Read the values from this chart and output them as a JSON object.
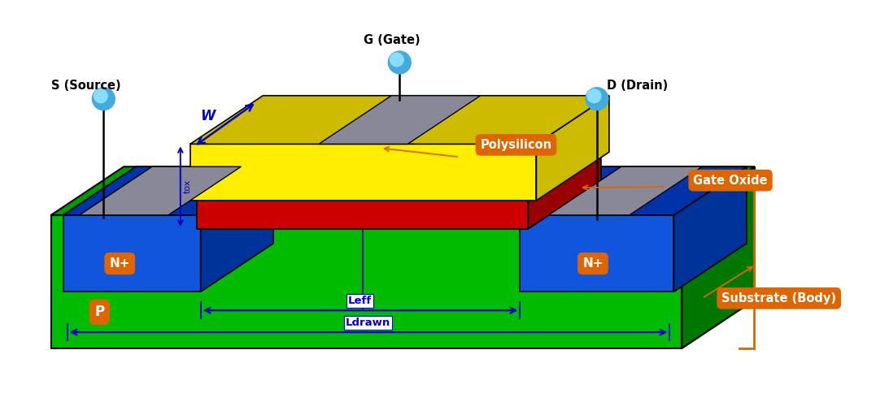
{
  "bg_color": "#ffffff",
  "colors": {
    "green": "#00bb00",
    "green_dark": "#009900",
    "green_side": "#007700",
    "blue": "#1155dd",
    "blue_dark": "#0033aa",
    "blue_side": "#003399",
    "yellow": "#ffee00",
    "yellow_side": "#ccbb00",
    "red": "#cc0000",
    "red_side": "#990000",
    "gray_contact": "#888899",
    "gray_contact_dark": "#666677",
    "orange": "#dd6600",
    "black": "#000000",
    "white": "#ffffff",
    "ball_outer": "#44aadd",
    "ball_inner": "#88ddff",
    "blue_dim": "#0000cc"
  },
  "labels": {
    "source": "S (Source)",
    "gate": "G (Gate)",
    "drain": "D (Drain)",
    "polysilicon": "Polysilicon",
    "gate_oxide": "Gate Oxide",
    "substrate": "Substrate (Body)",
    "nplus": "N+",
    "p_body": "P",
    "leff": "Leff",
    "ldrawn": "Ldrawn",
    "w": "W",
    "tox": "tox"
  }
}
